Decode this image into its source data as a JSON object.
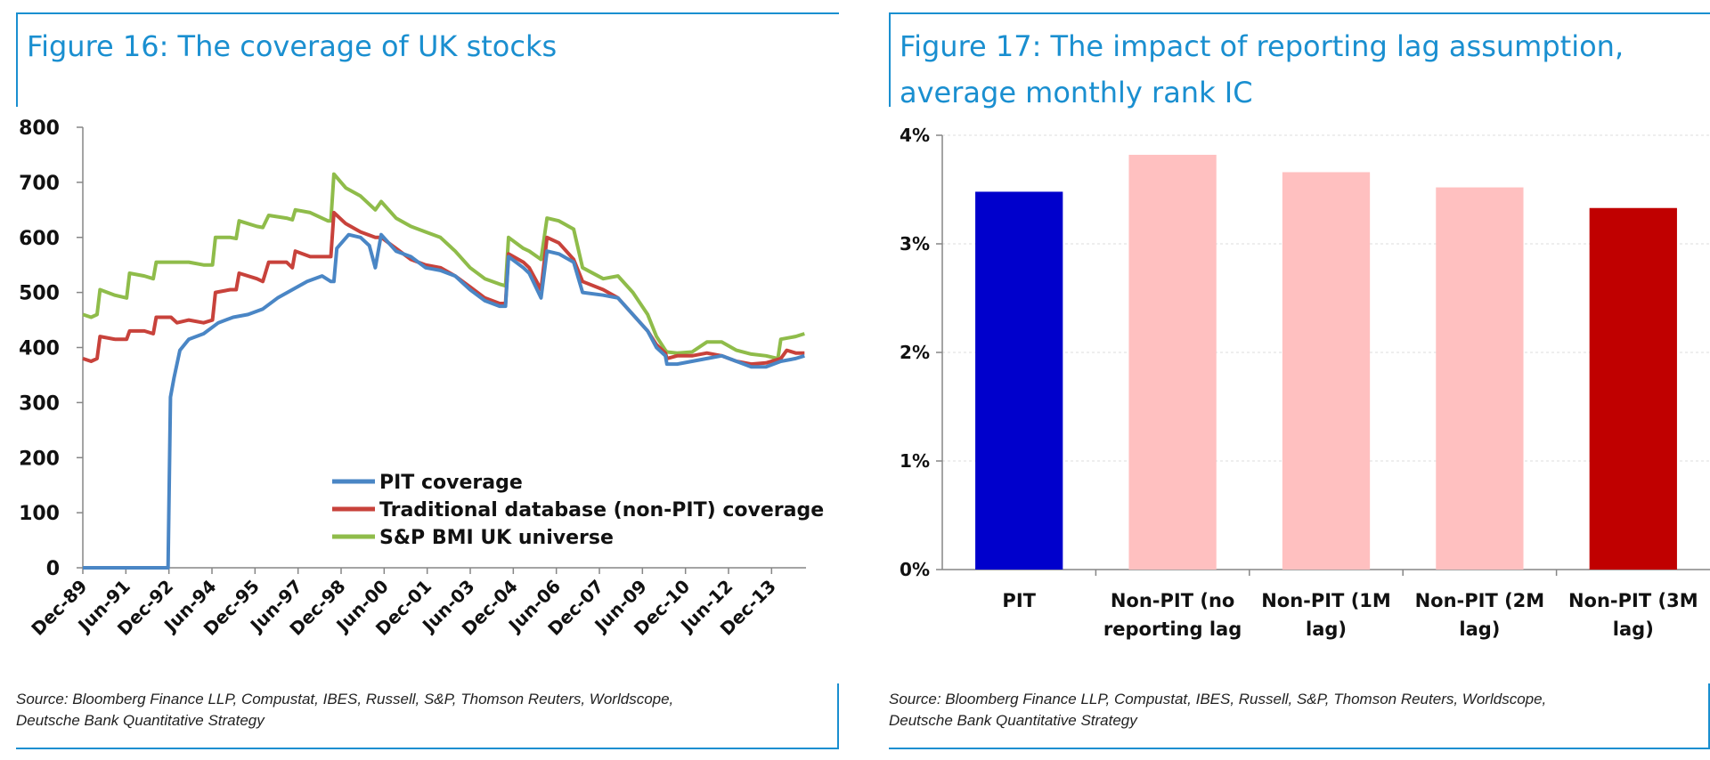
{
  "figures": {
    "left": {
      "title": "Figure 16: The coverage of UK stocks",
      "source_line1": "Source: Bloomberg Finance LLP, Compustat, IBES, Russell, S&P, Thomson Reuters, Worldscope,",
      "source_line2": "Deutsche Bank Quantitative Strategy"
    },
    "right": {
      "title_line1": "Figure 17: The impact of reporting lag assumption,",
      "title_line2": "average monthly rank IC",
      "source_line1": "Source: Bloomberg Finance LLP, Compustat, IBES, Russell, S&P, Thomson Reuters, Worldscope,",
      "source_line2": "Deutsche Bank Quantitative Strategy"
    }
  },
  "colors": {
    "accent": "#1a8fd0",
    "pit": "#4a86c5",
    "traditional": "#c8423b",
    "bmi": "#8fbc4a",
    "bar_pit": "#0000cc",
    "bar_nonpit": "#ffc0c0",
    "bar_3m": "#c00000"
  },
  "chart_data": [
    {
      "type": "line",
      "title": "Figure 16: The coverage of UK stocks",
      "xlabel": "",
      "ylabel": "",
      "ylim": [
        0,
        800
      ],
      "yticks": [
        "0",
        "100",
        "200",
        "300",
        "400",
        "500",
        "600",
        "700",
        "800"
      ],
      "xtick_labels": [
        "Dec-89",
        "Jun-91",
        "Dec-92",
        "Jun-94",
        "Dec-95",
        "Jun-97",
        "Dec-98",
        "Jun-00",
        "Dec-01",
        "Jun-03",
        "Dec-04",
        "Jun-06",
        "Dec-07",
        "Jun-09",
        "Dec-10",
        "Jun-12",
        "Dec-13"
      ],
      "legend_position": "bottom-right",
      "series": [
        {
          "name": "PIT coverage",
          "color": "#4a86c5",
          "points": [
            [
              1989.92,
              0
            ],
            [
              1991.5,
              0
            ],
            [
              1992.8,
              0
            ],
            [
              1992.88,
              310
            ],
            [
              1993.0,
              345
            ],
            [
              1993.2,
              395
            ],
            [
              1993.5,
              415
            ],
            [
              1994.0,
              425
            ],
            [
              1994.5,
              445
            ],
            [
              1995.0,
              455
            ],
            [
              1995.5,
              460
            ],
            [
              1996.0,
              470
            ],
            [
              1996.5,
              490
            ],
            [
              1997.0,
              505
            ],
            [
              1997.5,
              520
            ],
            [
              1998.0,
              530
            ],
            [
              1998.3,
              520
            ],
            [
              1998.4,
              520
            ],
            [
              1998.5,
              580
            ],
            [
              1998.9,
              605
            ],
            [
              1999.3,
              600
            ],
            [
              1999.6,
              585
            ],
            [
              1999.8,
              545
            ],
            [
              2000.0,
              605
            ],
            [
              2000.5,
              575
            ],
            [
              2001.0,
              565
            ],
            [
              2001.5,
              545
            ],
            [
              2002.0,
              540
            ],
            [
              2002.5,
              530
            ],
            [
              2003.0,
              505
            ],
            [
              2003.5,
              485
            ],
            [
              2004.0,
              475
            ],
            [
              2004.2,
              475
            ],
            [
              2004.3,
              565
            ],
            [
              2004.8,
              545
            ],
            [
              2005.0,
              535
            ],
            [
              2005.4,
              490
            ],
            [
              2005.6,
              575
            ],
            [
              2006.0,
              570
            ],
            [
              2006.5,
              555
            ],
            [
              2006.8,
              500
            ],
            [
              2007.5,
              495
            ],
            [
              2008.0,
              490
            ],
            [
              2008.5,
              460
            ],
            [
              2009.0,
              430
            ],
            [
              2009.3,
              400
            ],
            [
              2009.6,
              385
            ],
            [
              2009.65,
              370
            ],
            [
              2010.0,
              370
            ],
            [
              2010.5,
              375
            ],
            [
              2011.0,
              380
            ],
            [
              2011.5,
              385
            ],
            [
              2012.0,
              375
            ],
            [
              2012.5,
              365
            ],
            [
              2013.0,
              365
            ],
            [
              2013.5,
              375
            ],
            [
              2014.0,
              380
            ],
            [
              2014.3,
              385
            ]
          ]
        },
        {
          "name": "Traditional database (non-PIT) coverage",
          "color": "#c8423b",
          "points": [
            [
              1989.92,
              380
            ],
            [
              1990.2,
              375
            ],
            [
              1990.4,
              380
            ],
            [
              1990.5,
              420
            ],
            [
              1991.0,
              415
            ],
            [
              1991.4,
              415
            ],
            [
              1991.5,
              430
            ],
            [
              1992.0,
              430
            ],
            [
              1992.3,
              425
            ],
            [
              1992.4,
              455
            ],
            [
              1992.9,
              455
            ],
            [
              1993.1,
              445
            ],
            [
              1993.5,
              450
            ],
            [
              1994.0,
              445
            ],
            [
              1994.3,
              450
            ],
            [
              1994.4,
              500
            ],
            [
              1994.9,
              505
            ],
            [
              1995.1,
              505
            ],
            [
              1995.2,
              535
            ],
            [
              1995.8,
              525
            ],
            [
              1996.0,
              520
            ],
            [
              1996.2,
              555
            ],
            [
              1996.8,
              555
            ],
            [
              1997.0,
              545
            ],
            [
              1997.1,
              575
            ],
            [
              1997.6,
              565
            ],
            [
              1998.2,
              565
            ],
            [
              1998.3,
              565
            ],
            [
              1998.4,
              645
            ],
            [
              1998.8,
              625
            ],
            [
              1999.3,
              610
            ],
            [
              1999.8,
              600
            ],
            [
              2000.0,
              600
            ],
            [
              2000.5,
              580
            ],
            [
              2001.0,
              560
            ],
            [
              2001.5,
              550
            ],
            [
              2002.0,
              545
            ],
            [
              2002.5,
              530
            ],
            [
              2003.0,
              510
            ],
            [
              2003.5,
              490
            ],
            [
              2004.0,
              480
            ],
            [
              2004.2,
              480
            ],
            [
              2004.3,
              570
            ],
            [
              2004.8,
              555
            ],
            [
              2005.0,
              545
            ],
            [
              2005.4,
              505
            ],
            [
              2005.6,
              600
            ],
            [
              2006.0,
              590
            ],
            [
              2006.5,
              560
            ],
            [
              2006.8,
              520
            ],
            [
              2007.5,
              505
            ],
            [
              2008.0,
              490
            ],
            [
              2008.5,
              460
            ],
            [
              2009.0,
              430
            ],
            [
              2009.3,
              405
            ],
            [
              2009.6,
              390
            ],
            [
              2009.65,
              380
            ],
            [
              2010.0,
              385
            ],
            [
              2010.5,
              385
            ],
            [
              2011.0,
              390
            ],
            [
              2011.5,
              385
            ],
            [
              2012.0,
              375
            ],
            [
              2012.5,
              370
            ],
            [
              2013.0,
              372
            ],
            [
              2013.5,
              380
            ],
            [
              2013.7,
              395
            ],
            [
              2014.0,
              390
            ],
            [
              2014.3,
              390
            ]
          ]
        },
        {
          "name": "S&P BMI UK universe",
          "color": "#8fbc4a",
          "points": [
            [
              1989.92,
              460
            ],
            [
              1990.2,
              455
            ],
            [
              1990.4,
              460
            ],
            [
              1990.5,
              505
            ],
            [
              1991.0,
              495
            ],
            [
              1991.4,
              490
            ],
            [
              1991.5,
              535
            ],
            [
              1992.0,
              530
            ],
            [
              1992.3,
              525
            ],
            [
              1992.4,
              555
            ],
            [
              1992.9,
              555
            ],
            [
              1993.5,
              555
            ],
            [
              1994.0,
              550
            ],
            [
              1994.3,
              550
            ],
            [
              1994.4,
              600
            ],
            [
              1994.9,
              600
            ],
            [
              1995.1,
              598
            ],
            [
              1995.2,
              630
            ],
            [
              1995.8,
              620
            ],
            [
              1996.0,
              618
            ],
            [
              1996.2,
              640
            ],
            [
              1996.8,
              635
            ],
            [
              1997.0,
              632
            ],
            [
              1997.1,
              650
            ],
            [
              1997.6,
              645
            ],
            [
              1998.2,
              630
            ],
            [
              1998.3,
              630
            ],
            [
              1998.4,
              715
            ],
            [
              1998.8,
              690
            ],
            [
              1999.3,
              675
            ],
            [
              1999.8,
              650
            ],
            [
              2000.0,
              665
            ],
            [
              2000.5,
              635
            ],
            [
              2001.0,
              620
            ],
            [
              2001.5,
              610
            ],
            [
              2002.0,
              600
            ],
            [
              2002.5,
              575
            ],
            [
              2003.0,
              545
            ],
            [
              2003.5,
              525
            ],
            [
              2004.0,
              515
            ],
            [
              2004.2,
              512
            ],
            [
              2004.3,
              600
            ],
            [
              2004.8,
              580
            ],
            [
              2005.0,
              575
            ],
            [
              2005.4,
              560
            ],
            [
              2005.6,
              635
            ],
            [
              2006.0,
              630
            ],
            [
              2006.5,
              615
            ],
            [
              2006.8,
              545
            ],
            [
              2007.5,
              525
            ],
            [
              2008.0,
              530
            ],
            [
              2008.5,
              500
            ],
            [
              2009.0,
              460
            ],
            [
              2009.3,
              420
            ],
            [
              2009.6,
              395
            ],
            [
              2009.65,
              392
            ],
            [
              2010.0,
              390
            ],
            [
              2010.5,
              392
            ],
            [
              2011.0,
              410
            ],
            [
              2011.5,
              410
            ],
            [
              2012.0,
              395
            ],
            [
              2012.5,
              388
            ],
            [
              2013.0,
              385
            ],
            [
              2013.4,
              380
            ],
            [
              2013.5,
              415
            ],
            [
              2014.0,
              420
            ],
            [
              2014.3,
              425
            ]
          ]
        }
      ]
    },
    {
      "type": "bar",
      "title": "Figure 17: The impact of reporting lag assumption, average monthly rank IC",
      "xlabel": "",
      "ylabel": "",
      "ylim": [
        0,
        4
      ],
      "yticks": [
        "0%",
        "1%",
        "2%",
        "3%",
        "4%"
      ],
      "categories": [
        [
          "PIT"
        ],
        [
          "Non-PIT (no",
          "reporting lag"
        ],
        [
          "Non-PIT (1M",
          "lag)"
        ],
        [
          "Non-PIT (2M",
          "lag)"
        ],
        [
          "Non-PIT (3M",
          "lag)"
        ]
      ],
      "values": [
        3.48,
        3.82,
        3.66,
        3.52,
        3.33
      ],
      "bar_colors": [
        "#0000cc",
        "#ffc0c0",
        "#ffc0c0",
        "#ffc0c0",
        "#c00000"
      ]
    }
  ]
}
